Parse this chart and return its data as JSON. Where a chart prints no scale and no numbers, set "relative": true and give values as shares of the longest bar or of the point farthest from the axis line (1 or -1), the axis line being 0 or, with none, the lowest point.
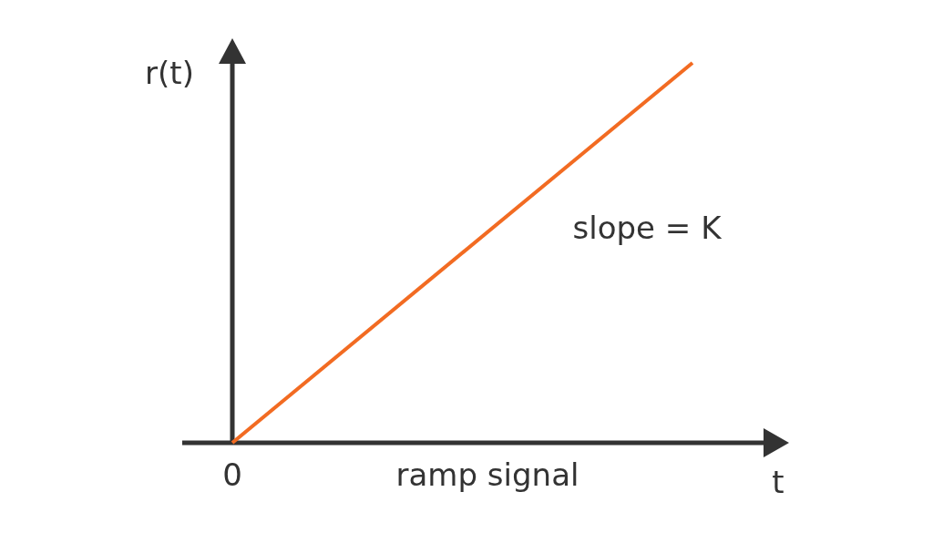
{
  "chart_data": {
    "type": "line",
    "relative": true,
    "categories": [
      null,
      null
    ],
    "xlabel": "t",
    "ylabel": "r(t)",
    "series": [
      {
        "color": "#f26b22",
        "values": [
          0,
          1
        ]
      }
    ],
    "annotations": [
      "0",
      "ramp signal",
      "slope = K"
    ],
    "line_style": "solid"
  }
}
